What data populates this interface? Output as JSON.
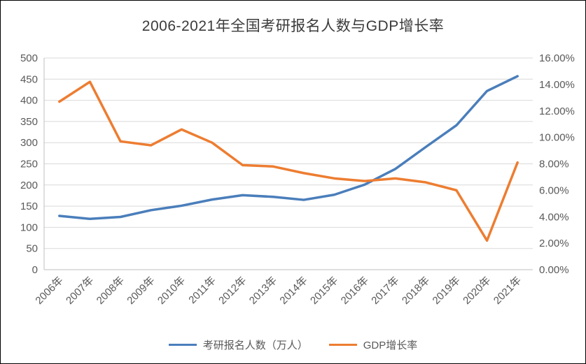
{
  "title": "2006-2021年全国考研报名人数与GDP增长率",
  "chart_data": {
    "type": "line",
    "title": "2006-2021年全国考研报名人数与GDP增长率",
    "categories": [
      "2006年",
      "2007年",
      "2008年",
      "2009年",
      "2010年",
      "2011年",
      "2012年",
      "2013年",
      "2014年",
      "2015年",
      "2016年",
      "2017年",
      "2018年",
      "2019年",
      "2020年",
      "2021年"
    ],
    "series": [
      {
        "name": "考研报名人数（万人）",
        "axis": "left",
        "color": "#4a7ebb",
        "values": [
          127,
          120,
          124.6,
          140.6,
          151.1,
          165.6,
          176,
          172,
          164.9,
          177,
          201,
          238,
          290,
          341,
          422,
          457
        ]
      },
      {
        "name": "GDP增长率",
        "axis": "right",
        "color": "#ed7d31",
        "values": [
          12.7,
          14.2,
          9.7,
          9.4,
          10.6,
          9.6,
          7.9,
          7.8,
          7.3,
          6.9,
          6.7,
          6.9,
          6.6,
          6.0,
          2.2,
          8.1
        ]
      }
    ],
    "left_axis": {
      "min": 0,
      "max": 500,
      "step": 50,
      "tick_labels": [
        "0",
        "50",
        "100",
        "150",
        "200",
        "250",
        "300",
        "350",
        "400",
        "450",
        "500"
      ]
    },
    "right_axis": {
      "min": 0,
      "max": 16,
      "step": 2,
      "tick_labels": [
        "0.00%",
        "2.00%",
        "4.00%",
        "6.00%",
        "8.00%",
        "10.00%",
        "12.00%",
        "14.00%",
        "16.00%"
      ]
    },
    "grid": true,
    "legend_position": "bottom"
  },
  "colors": {
    "series1": "#4a7ebb",
    "series2": "#ed7d31",
    "grid": "#d9d9d9",
    "axis_line": "#bfbfbf",
    "axis_text": "#595959",
    "title_text": "#3b3b3b"
  }
}
